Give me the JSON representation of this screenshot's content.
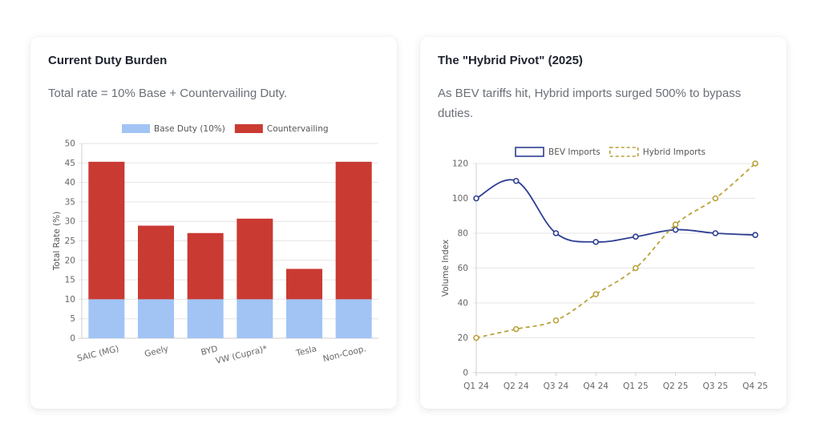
{
  "left_card": {
    "title": "Current Duty Burden",
    "subtitle": "Total rate = 10% Base + Countervailing Duty."
  },
  "right_card": {
    "title": "The \"Hybrid Pivot\" (2025)",
    "subtitle": "As BEV tariffs hit, Hybrid imports surged 500% to bypass duties."
  },
  "chart_data": [
    {
      "type": "bar",
      "stacked": true,
      "categories": [
        "SAIC (MG)",
        "Geely",
        "BYD",
        "VW (Cupra)*",
        "Tesla",
        "Non-Coop."
      ],
      "series": [
        {
          "name": "Base Duty (10%)",
          "color": "#a1c4f5",
          "values": [
            10,
            10,
            10,
            10,
            10,
            10
          ]
        },
        {
          "name": "Countervailing",
          "color": "#c93a32",
          "values": [
            35.3,
            18.9,
            17.0,
            20.7,
            7.8,
            35.3
          ]
        }
      ],
      "ylabel": "Total Rate (%)",
      "ylim": [
        0,
        50
      ],
      "yticks": [
        0,
        5,
        10,
        15,
        20,
        25,
        30,
        35,
        40,
        45,
        50
      ],
      "grid": true,
      "legend": "top-center"
    },
    {
      "type": "line",
      "categories": [
        "Q1 24",
        "Q2 24",
        "Q3 24",
        "Q4 24",
        "Q1 25",
        "Q2 25",
        "Q3 25",
        "Q4 25"
      ],
      "series": [
        {
          "name": "BEV Imports",
          "color": "#2e3f93",
          "style": "solid",
          "values": [
            100,
            110,
            80,
            75,
            78,
            82,
            80,
            79
          ]
        },
        {
          "name": "Hybrid Imports",
          "color": "#b9a23a",
          "style": "dashed",
          "values": [
            20,
            25,
            30,
            45,
            60,
            85,
            100,
            120
          ]
        }
      ],
      "ylabel": "Volume Index",
      "ylim": [
        0,
        120
      ],
      "yticks": [
        0,
        20,
        40,
        60,
        80,
        100,
        120
      ],
      "grid": true,
      "legend": "top-center"
    }
  ]
}
